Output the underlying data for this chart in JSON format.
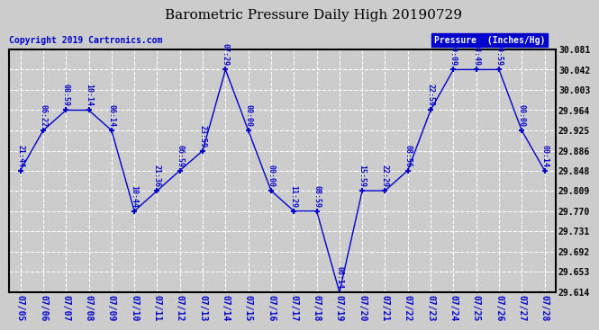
{
  "title": "Barometric Pressure Daily High 20190729",
  "copyright": "Copyright 2019 Cartronics.com",
  "ylabel": "Pressure  (Inches/Hg)",
  "dates": [
    "07/05",
    "07/06",
    "07/07",
    "07/08",
    "07/09",
    "07/10",
    "07/11",
    "07/12",
    "07/13",
    "07/14",
    "07/15",
    "07/16",
    "07/17",
    "07/18",
    "07/19",
    "07/20",
    "07/21",
    "07/22",
    "07/23",
    "07/24",
    "07/25",
    "07/26",
    "07/27",
    "07/28"
  ],
  "values": [
    29.848,
    29.925,
    29.964,
    29.964,
    29.925,
    29.77,
    29.809,
    29.848,
    29.886,
    30.042,
    29.925,
    29.809,
    29.77,
    29.77,
    29.614,
    29.809,
    29.809,
    29.848,
    29.964,
    30.042,
    30.042,
    30.042,
    29.925,
    29.848
  ],
  "times": [
    "21:44",
    "06:22",
    "08:59",
    "10:14",
    "06:14",
    "10:44",
    "21:36",
    "06:59",
    "23:59",
    "07:29",
    "00:00",
    "00:00",
    "11:29",
    "08:59",
    "06:14",
    "15:59",
    "22:29",
    "08:56",
    "22:59",
    "09:09",
    "08:49",
    "09:59",
    "00:00",
    "00:14"
  ],
  "ylim_min": 29.614,
  "ylim_max": 30.081,
  "yticks": [
    29.614,
    29.653,
    29.692,
    29.731,
    29.77,
    29.809,
    29.848,
    29.886,
    29.925,
    29.964,
    30.003,
    30.042,
    30.081
  ],
  "line_color": "#0000CC",
  "marker": "+",
  "bg_color": "#CCCCCC",
  "plot_bg_color": "#CCCCCC",
  "grid_color": "#FFFFFF",
  "title_fontsize": 11,
  "tick_fontsize": 7,
  "legend_bg": "#0000CC",
  "legend_text_color": "#FFFFFF",
  "copyright_fontsize": 7,
  "annotation_fontsize": 6
}
